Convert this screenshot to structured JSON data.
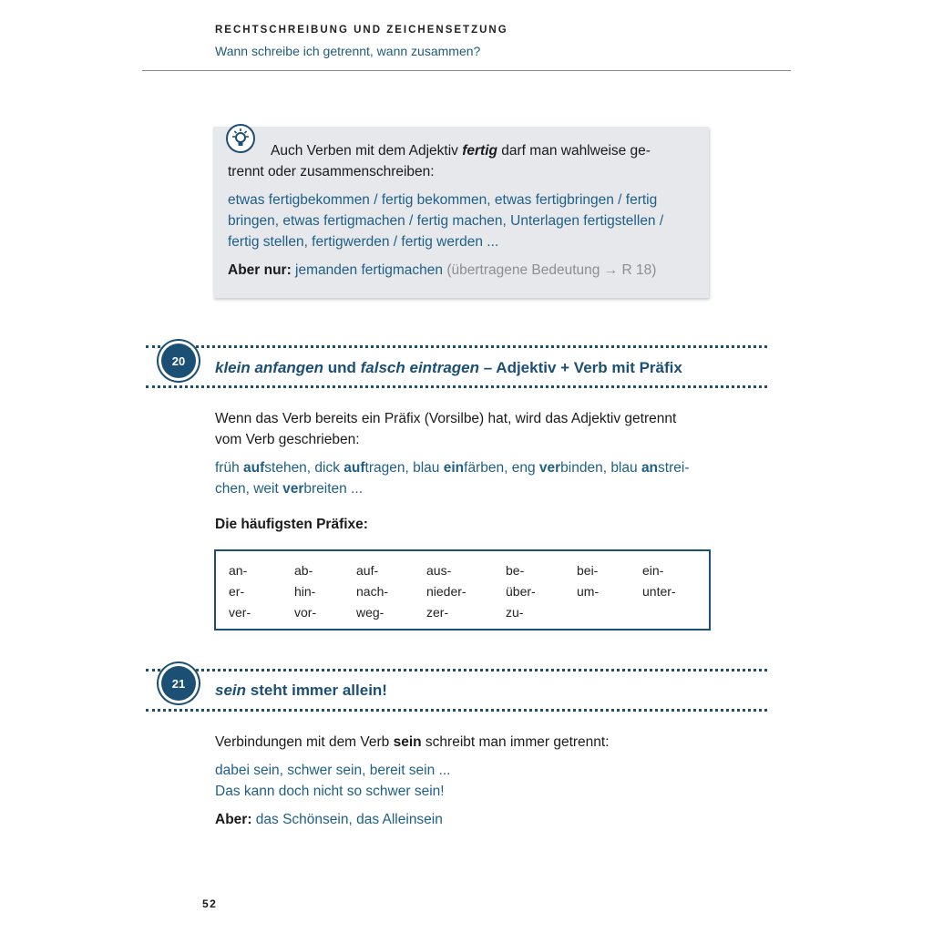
{
  "header": {
    "chapter": "RECHTSCHREIBUNG UND ZEICHENSETZUNG",
    "subtitle": "Wann schreibe ich getrennt, wann zusammen?"
  },
  "tip": {
    "icon": "lightbulb-icon",
    "intro_a": "Auch Verben mit dem Adjektiv ",
    "intro_b": "fertig",
    "intro_c": " darf man wahlweise ge-",
    "intro_line2": "trennt oder zusammenschreiben:",
    "examples": [
      "etwas fertigbekommen / fertig bekommen, etwas fertigbringen / fertig",
      "bringen, etwas fertigmachen / fertig machen, Unterlagen fertigstellen /",
      "fertig stellen, fertigwerden / fertig werden ..."
    ],
    "but_label": "Aber nur:",
    "but_example": " jemanden fertigmachen",
    "but_note": " (übertragene Bedeutung → R 18)"
  },
  "section20": {
    "number": "20",
    "title_a": "klein anfangen",
    "title_b": " und ",
    "title_c": "falsch eintragen",
    "title_d": " – Adjektiv + Verb mit Präfix",
    "body": [
      "Wenn das Verb bereits ein Präfix (Vorsilbe) hat, wird das Adjektiv getrennt",
      "vom Verb geschrieben:"
    ],
    "examples": [
      [
        [
          "früh ",
          0
        ],
        [
          "auf",
          1
        ],
        [
          "stehen, dick ",
          0
        ],
        [
          "auf",
          1
        ],
        [
          "tragen, blau ",
          0
        ],
        [
          "ein",
          1
        ],
        [
          "färben, eng ",
          0
        ],
        [
          "ver",
          1
        ],
        [
          "binden, blau ",
          0
        ],
        [
          "an",
          1
        ],
        [
          "strei-",
          0
        ]
      ],
      [
        [
          "chen, weit ",
          0
        ],
        [
          "ver",
          1
        ],
        [
          "breiten ...",
          0
        ]
      ]
    ],
    "prefix_heading": "Die häufigsten Präfixe:",
    "prefixes": [
      [
        "an-",
        "ab-",
        "auf-",
        "aus-",
        "be-",
        "bei-",
        "ein-"
      ],
      [
        "er-",
        "hin-",
        "nach-",
        "nieder-",
        "über-",
        "um-",
        "unter-"
      ],
      [
        "ver-",
        "vor-",
        "weg-",
        "zer-",
        "zu-"
      ]
    ]
  },
  "section21": {
    "number": "21",
    "title_a": "sein",
    "title_b": " steht immer allein!",
    "body_a": "Verbindungen mit dem Verb ",
    "body_b": "sein",
    "body_c": " schreibt man immer getrennt:",
    "examples": [
      "dabei sein, schwer sein, bereit sein ...",
      "Das kann doch nicht so schwer sein!"
    ],
    "but_label": "Aber:",
    "but_example": " das Schönsein, das Alleinsein"
  },
  "page_number": "52",
  "colors": {
    "accent": "#1c4f74",
    "example_text": "#1f5f85",
    "tip_background": "#e6e8ec"
  }
}
